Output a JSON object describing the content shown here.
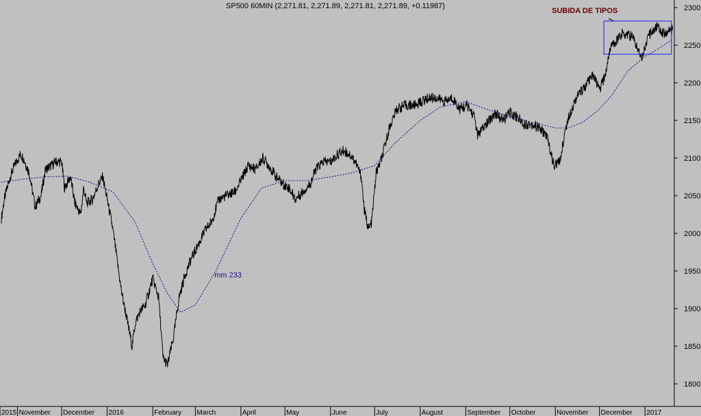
{
  "chart_data": {
    "type": "line",
    "title": "SP500 60MIN (2,271.81, 2,271.89, 2,271.81, 2,271.89, +0.11987)",
    "xlabel": "",
    "ylabel": "",
    "ylim": [
      1770,
      2310
    ],
    "yticks": [
      1800,
      1850,
      1900,
      1950,
      2000,
      2050,
      2100,
      2150,
      2200,
      2250,
      2300
    ],
    "x_labels": [
      "2015",
      "November",
      "December",
      "2016",
      "February",
      "March",
      "April",
      "May",
      "June",
      "July",
      "August",
      "September",
      "October",
      "November",
      "December",
      "2017"
    ],
    "x_range": [
      "2015-10-21",
      "2017-01-20"
    ],
    "x_label_dates": [
      "2015-10-01",
      "2015-11-01",
      "2015-12-01",
      "2016-01-01",
      "2016-02-01",
      "2016-03-01",
      "2016-04-01",
      "2016-05-01",
      "2016-06-01",
      "2016-07-01",
      "2016-08-01",
      "2016-09-01",
      "2016-10-01",
      "2016-11-01",
      "2016-12-01",
      "2017-01-01"
    ],
    "grid": false,
    "series": [
      {
        "name": "",
        "style": "solid",
        "color": "#000000",
        "x": [
          "2015-10-21",
          "2015-10-23",
          "2015-10-27",
          "2015-10-30",
          "2015-11-03",
          "2015-11-05",
          "2015-11-09",
          "2015-11-13",
          "2015-11-17",
          "2015-11-20",
          "2015-11-24",
          "2015-11-27",
          "2015-12-01",
          "2015-12-03",
          "2015-12-07",
          "2015-12-10",
          "2015-12-14",
          "2015-12-16",
          "2015-12-18",
          "2015-12-22",
          "2015-12-26",
          "2015-12-29",
          "2016-01-04",
          "2016-01-06",
          "2016-01-08",
          "2016-01-11",
          "2016-01-14",
          "2016-01-18",
          "2016-01-20",
          "2016-01-23",
          "2016-01-27",
          "2016-02-01",
          "2016-02-05",
          "2016-02-08",
          "2016-02-11",
          "2016-02-15",
          "2016-02-19",
          "2016-02-23",
          "2016-02-27",
          "2016-03-03",
          "2016-03-08",
          "2016-03-12",
          "2016-03-17",
          "2016-03-22",
          "2016-03-28",
          "2016-04-01",
          "2016-04-06",
          "2016-04-11",
          "2016-04-16",
          "2016-04-20",
          "2016-04-25",
          "2016-04-30",
          "2016-05-04",
          "2016-05-08",
          "2016-05-13",
          "2016-05-18",
          "2016-05-22",
          "2016-05-27",
          "2016-06-01",
          "2016-06-06",
          "2016-06-10",
          "2016-06-14",
          "2016-06-18",
          "2016-06-22",
          "2016-06-24",
          "2016-06-27",
          "2016-06-29",
          "2016-07-02",
          "2016-07-06",
          "2016-07-11",
          "2016-07-16",
          "2016-07-22",
          "2016-07-28",
          "2016-08-02",
          "2016-08-07",
          "2016-08-12",
          "2016-08-18",
          "2016-08-23",
          "2016-08-28",
          "2016-09-02",
          "2016-09-07",
          "2016-09-09",
          "2016-09-13",
          "2016-09-17",
          "2016-09-21",
          "2016-09-26",
          "2016-10-01",
          "2016-10-06",
          "2016-10-11",
          "2016-10-16",
          "2016-10-21",
          "2016-10-26",
          "2016-10-31",
          "2016-11-04",
          "2016-11-08",
          "2016-11-11",
          "2016-11-15",
          "2016-11-19",
          "2016-11-23",
          "2016-11-27",
          "2016-12-01",
          "2016-12-05",
          "2016-12-08",
          "2016-12-12",
          "2016-12-16",
          "2016-12-20",
          "2016-12-24",
          "2016-12-27",
          "2016-12-30",
          "2017-01-03",
          "2017-01-06",
          "2017-01-10",
          "2017-01-14",
          "2017-01-18",
          "2017-01-20"
        ],
        "values": [
          2020,
          2045,
          2075,
          2090,
          2105,
          2100,
          2080,
          2035,
          2050,
          2085,
          2090,
          2095,
          2095,
          2060,
          2075,
          2040,
          2025,
          2060,
          2040,
          2045,
          2065,
          2075,
          2015,
          1990,
          1960,
          1920,
          1890,
          1850,
          1880,
          1895,
          1905,
          1940,
          1915,
          1835,
          1825,
          1860,
          1915,
          1945,
          1965,
          1985,
          2005,
          2015,
          2045,
          2050,
          2055,
          2070,
          2090,
          2085,
          2100,
          2090,
          2075,
          2065,
          2060,
          2045,
          2055,
          2065,
          2085,
          2095,
          2095,
          2105,
          2110,
          2105,
          2095,
          2075,
          2030,
          2005,
          2015,
          2080,
          2100,
          2140,
          2165,
          2170,
          2170,
          2175,
          2180,
          2180,
          2175,
          2180,
          2165,
          2170,
          2155,
          2130,
          2140,
          2150,
          2160,
          2150,
          2160,
          2155,
          2145,
          2145,
          2140,
          2130,
          2090,
          2095,
          2140,
          2160,
          2180,
          2190,
          2200,
          2210,
          2190,
          2210,
          2245,
          2255,
          2265,
          2265,
          2260,
          2245,
          2235,
          2260,
          2270,
          2275,
          2265,
          2270,
          2270
        ]
      },
      {
        "name": "mm 233",
        "style": "dotted",
        "color": "#2a0a8a",
        "x": [
          "2015-10-21",
          "2015-11-05",
          "2015-11-20",
          "2015-12-05",
          "2015-12-20",
          "2016-01-05",
          "2016-01-20",
          "2016-02-01",
          "2016-02-11",
          "2016-02-20",
          "2016-03-01",
          "2016-03-15",
          "2016-04-01",
          "2016-04-15",
          "2016-05-01",
          "2016-05-15",
          "2016-06-01",
          "2016-06-15",
          "2016-07-01",
          "2016-07-15",
          "2016-08-01",
          "2016-08-15",
          "2016-09-01",
          "2016-09-15",
          "2016-10-01",
          "2016-10-15",
          "2016-11-01",
          "2016-11-10",
          "2016-11-20",
          "2016-12-01",
          "2016-12-10",
          "2016-12-20",
          "2017-01-01",
          "2017-01-10",
          "2017-01-20"
        ],
        "values": [
          2068,
          2072,
          2075,
          2076,
          2068,
          2055,
          2015,
          1960,
          1920,
          1895,
          1905,
          1950,
          2020,
          2060,
          2070,
          2070,
          2075,
          2080,
          2090,
          2120,
          2150,
          2168,
          2175,
          2165,
          2155,
          2148,
          2140,
          2140,
          2148,
          2165,
          2185,
          2215,
          2235,
          2245,
          2258
        ]
      }
    ],
    "annotations": [
      {
        "text": "mm 233",
        "x": "2016-03-14",
        "y": 1945
      },
      {
        "text": "SUBIDA DE TIPOS",
        "x": "2016-11-21",
        "y": 2300
      }
    ],
    "highlight_box": {
      "x0": "2016-12-04",
      "x1": "2017-01-19",
      "y0": 2238,
      "y1": 2282,
      "color": "#1a1aff"
    },
    "colors": {
      "background": "#c0c0c0",
      "price": "#000000",
      "moving_average": "#2a0a8a",
      "callout": "#6b0000",
      "box": "#1a1aff"
    }
  }
}
